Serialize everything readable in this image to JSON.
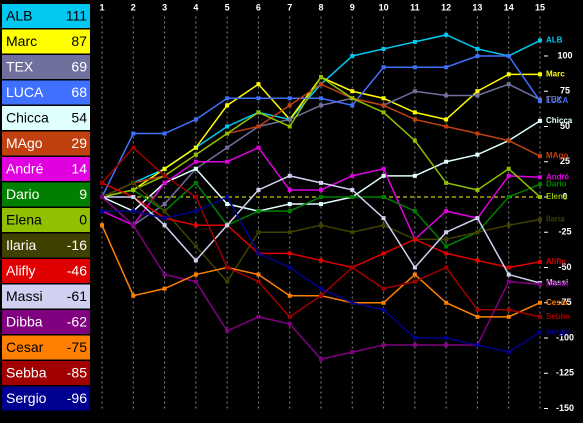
{
  "chart_data": {
    "type": "line",
    "x": [
      1,
      2,
      3,
      4,
      5,
      6,
      7,
      8,
      9,
      10,
      11,
      12,
      13,
      14,
      15
    ],
    "xticks": [
      1,
      2,
      3,
      4,
      5,
      6,
      7,
      8,
      9,
      10,
      11,
      12,
      13,
      14,
      15
    ],
    "xlim": [
      1,
      15
    ],
    "ylim": [
      -150,
      128
    ],
    "yticks": [
      100,
      75,
      50,
      25,
      0,
      -25,
      -50,
      -75,
      -100,
      -125,
      -150
    ],
    "grid": true,
    "series": [
      {
        "name": "ALB",
        "color": "#00c8f0",
        "values": [
          0,
          10,
          20,
          35,
          50,
          60,
          55,
          80,
          100,
          105,
          110,
          115,
          105,
          100,
          111
        ]
      },
      {
        "name": "Marc",
        "color": "#ffff00",
        "values": [
          0,
          5,
          20,
          35,
          65,
          80,
          55,
          85,
          75,
          70,
          60,
          55,
          75,
          87,
          87
        ]
      },
      {
        "name": "TEX",
        "color": "#70709f",
        "values": [
          0,
          -20,
          -5,
          20,
          35,
          50,
          55,
          65,
          70,
          65,
          75,
          72,
          72,
          80,
          69
        ]
      },
      {
        "name": "LUCA",
        "color": "#4070ff",
        "values": [
          0,
          45,
          45,
          55,
          70,
          70,
          70,
          70,
          65,
          92,
          92,
          92,
          100,
          100,
          68
        ]
      },
      {
        "name": "Chicca",
        "color": "#e0ffff",
        "values": [
          0,
          -10,
          10,
          20,
          -5,
          -10,
          -5,
          -5,
          0,
          15,
          15,
          25,
          30,
          40,
          54
        ]
      },
      {
        "name": "MAgo",
        "color": "#c04010",
        "values": [
          0,
          10,
          15,
          30,
          45,
          50,
          65,
          80,
          70,
          65,
          55,
          50,
          45,
          40,
          29
        ]
      },
      {
        "name": "André",
        "color": "#e000e0",
        "values": [
          -10,
          -20,
          10,
          25,
          25,
          35,
          5,
          5,
          15,
          20,
          -30,
          -10,
          -15,
          15,
          14
        ]
      },
      {
        "name": "Dario",
        "color": "#008000",
        "values": [
          0,
          5,
          -10,
          10,
          -20,
          -10,
          -10,
          0,
          0,
          0,
          -10,
          -35,
          -25,
          0,
          9
        ]
      },
      {
        "name": "Elena",
        "color": "#90c000",
        "values": [
          0,
          5,
          15,
          30,
          45,
          60,
          50,
          85,
          70,
          60,
          40,
          10,
          5,
          20,
          0
        ]
      },
      {
        "name": "Ilaria",
        "color": "#404000",
        "values": [
          0,
          10,
          -10,
          -35,
          -60,
          -25,
          -25,
          -20,
          -25,
          -20,
          -30,
          -30,
          -25,
          -20,
          -16
        ]
      },
      {
        "name": "Alifly",
        "color": "#e00000",
        "values": [
          10,
          0,
          -15,
          -20,
          -20,
          -40,
          -40,
          -45,
          -50,
          -40,
          -30,
          -40,
          -45,
          -50,
          -46
        ]
      },
      {
        "name": "Massi",
        "color": "#d0d0f0",
        "values": [
          0,
          0,
          -20,
          -45,
          -20,
          5,
          15,
          10,
          5,
          -15,
          -50,
          -25,
          -15,
          -55,
          -61
        ]
      },
      {
        "name": "Dibba",
        "color": "#800080",
        "values": [
          0,
          -20,
          -55,
          -60,
          -95,
          -85,
          -90,
          -115,
          -110,
          -105,
          -105,
          -105,
          -105,
          -60,
          -62
        ]
      },
      {
        "name": "Cesar",
        "color": "#ff8000",
        "values": [
          -20,
          -70,
          -65,
          -55,
          -50,
          -55,
          -70,
          -70,
          -75,
          -75,
          -55,
          -75,
          -85,
          -85,
          -75
        ]
      },
      {
        "name": "Sebba",
        "color": "#a00000",
        "values": [
          10,
          35,
          15,
          0,
          -50,
          -60,
          -85,
          -70,
          -50,
          -65,
          -60,
          -50,
          -80,
          -80,
          -85
        ]
      },
      {
        "name": "Sergio",
        "color": "#000090",
        "values": [
          -10,
          -10,
          -15,
          -10,
          0,
          -40,
          -50,
          -65,
          -75,
          -80,
          -100,
          -100,
          -105,
          -110,
          -96
        ]
      }
    ]
  }
}
